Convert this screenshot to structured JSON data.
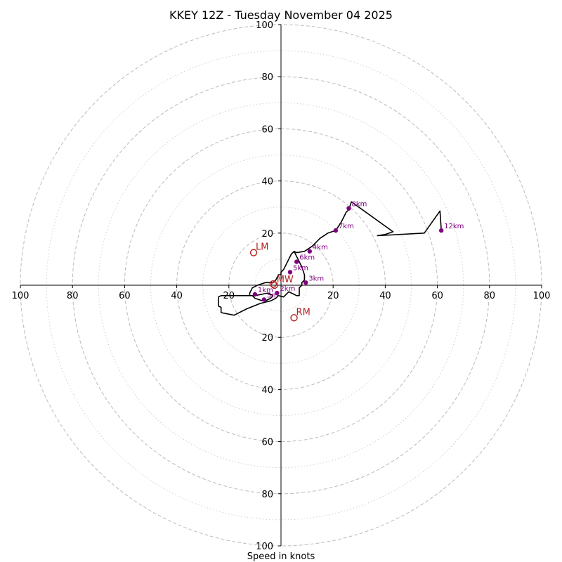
{
  "chart_data": {
    "type": "hodograph",
    "title": "KKEY 12Z - Tuesday November 04 2025",
    "xlabel": "Speed in knots",
    "units": "knots",
    "range": [
      -100,
      100
    ],
    "rings_major": [
      20,
      40,
      60,
      80,
      100
    ],
    "rings_minor": [
      10,
      30,
      50,
      70,
      90
    ],
    "axis_ticks_x": [
      {
        "value": -100,
        "label": "100"
      },
      {
        "value": -80,
        "label": "80"
      },
      {
        "value": -60,
        "label": "60"
      },
      {
        "value": -40,
        "label": "40"
      },
      {
        "value": -20,
        "label": "20"
      },
      {
        "value": 20,
        "label": "20"
      },
      {
        "value": 40,
        "label": "40"
      },
      {
        "value": 60,
        "label": "60"
      },
      {
        "value": 80,
        "label": "80"
      },
      {
        "value": 100,
        "label": "100"
      }
    ],
    "axis_ticks_y": [
      {
        "value": 100,
        "label": "100"
      },
      {
        "value": 80,
        "label": "80"
      },
      {
        "value": 60,
        "label": "60"
      },
      {
        "value": 40,
        "label": "40"
      },
      {
        "value": 20,
        "label": "20"
      },
      {
        "value": -20,
        "label": "20"
      },
      {
        "value": -40,
        "label": "40"
      },
      {
        "value": -60,
        "label": "60"
      },
      {
        "value": -80,
        "label": "80"
      },
      {
        "value": -100,
        "label": "100"
      }
    ],
    "trace": [
      [
        -3,
        -4
      ],
      [
        -5,
        -3
      ],
      [
        -10,
        -4
      ],
      [
        -13,
        -4
      ],
      [
        -16,
        -4
      ],
      [
        -19,
        -4
      ],
      [
        -21,
        -4
      ],
      [
        -23,
        -4
      ],
      [
        -24,
        -4.5
      ],
      [
        -24,
        -8
      ],
      [
        -23,
        -8.5
      ],
      [
        -23,
        -10.5
      ],
      [
        -18,
        -11.5
      ],
      [
        -17,
        -11
      ],
      [
        -13,
        -9
      ],
      [
        -8,
        -7
      ],
      [
        -6,
        -6.5
      ],
      [
        -4,
        -6
      ],
      [
        -2,
        -5
      ],
      [
        -1,
        -4
      ],
      [
        1,
        -4.5
      ],
      [
        3,
        -2.5
      ],
      [
        5,
        -3.5
      ],
      [
        6,
        -4
      ],
      [
        7,
        -4
      ],
      [
        7,
        -3
      ],
      [
        7,
        -1
      ],
      [
        8,
        0
      ],
      [
        8,
        1
      ],
      [
        9,
        2
      ],
      [
        9,
        4
      ],
      [
        8,
        7
      ],
      [
        7,
        9
      ],
      [
        6,
        11
      ],
      [
        5,
        13
      ],
      [
        4,
        12
      ],
      [
        3,
        10
      ],
      [
        2,
        8
      ],
      [
        1,
        6
      ],
      [
        0,
        5
      ],
      [
        0,
        4
      ],
      [
        -1,
        4
      ],
      [
        -2,
        2
      ],
      [
        -3,
        1
      ],
      [
        -6,
        1
      ],
      [
        -9,
        0
      ],
      [
        -11,
        -1
      ],
      [
        -12,
        -3
      ],
      [
        -12,
        -4
      ],
      [
        -11,
        -4
      ],
      [
        -10,
        -5
      ],
      [
        -7,
        -6
      ],
      [
        -6,
        -6
      ],
      [
        -4,
        -5
      ],
      [
        -3,
        -4
      ]
    ],
    "trace_upper": [
      [
        5,
        13
      ],
      [
        6,
        12.5
      ],
      [
        9,
        13
      ],
      [
        12,
        15
      ],
      [
        15,
        18
      ],
      [
        18,
        20
      ],
      [
        21,
        21
      ],
      [
        23,
        24
      ],
      [
        25,
        28
      ],
      [
        26,
        29
      ],
      [
        27,
        32
      ],
      [
        43,
        20.5
      ],
      [
        40,
        19.5
      ],
      [
        37,
        19
      ],
      [
        55,
        20
      ],
      [
        61,
        28.5
      ],
      [
        61.5,
        21
      ]
    ],
    "height_points": [
      {
        "label": "1km",
        "u": -10,
        "v": -3.5
      },
      {
        "label": "2km",
        "u": -1.5,
        "v": -3
      },
      {
        "label": "3km",
        "u": 9.5,
        "v": 1
      },
      {
        "label": "4km",
        "u": 11,
        "v": 13
      },
      {
        "label": "5km",
        "u": 3.5,
        "v": 5
      },
      {
        "label": "6km",
        "u": 6,
        "v": 9
      },
      {
        "label": "7km",
        "u": 21,
        "v": 21
      },
      {
        "label": "8km",
        "u": 26,
        "v": 29.5
      },
      {
        "label": "12km",
        "u": 61.5,
        "v": 21
      },
      {
        "label": "5m",
        "u": -6.5,
        "v": -5.5
      }
    ],
    "storm_motion": [
      {
        "label": "LM",
        "u": -10.5,
        "v": 12.5
      },
      {
        "label": "RM",
        "u": 5,
        "v": -12.5
      },
      {
        "label": "MW",
        "u": -2.5,
        "v": 0
      },
      {
        "label": "",
        "u": -3,
        "v": 0.5
      }
    ],
    "colors": {
      "trace": "#000000",
      "height": "#800080",
      "storm": "#b22222",
      "rings": "#bbbbbb"
    }
  }
}
